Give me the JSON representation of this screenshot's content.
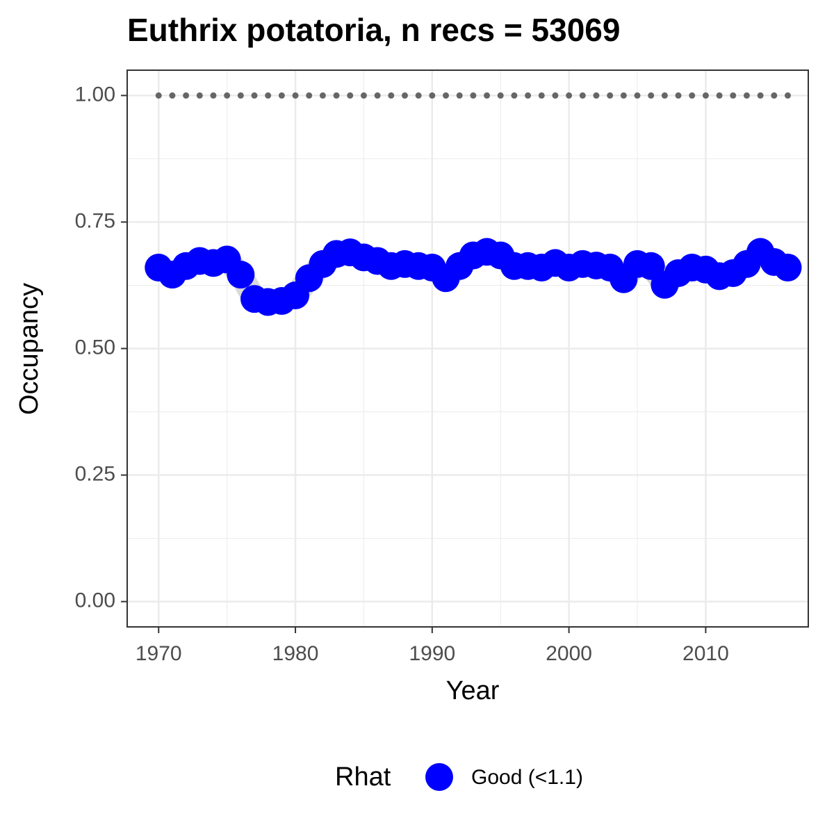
{
  "chart_data": {
    "type": "scatter",
    "title": "Euthrix potatoria, n recs = 53069",
    "x_label": "Year",
    "y_label": "Occupancy",
    "x": [
      1970,
      1971,
      1972,
      1973,
      1974,
      1975,
      1976,
      1977,
      1978,
      1979,
      1980,
      1981,
      1982,
      1983,
      1984,
      1985,
      1986,
      1987,
      1988,
      1989,
      1990,
      1991,
      1992,
      1993,
      1994,
      1995,
      1996,
      1997,
      1998,
      1999,
      2000,
      2001,
      2002,
      2003,
      2004,
      2005,
      2006,
      2007,
      2008,
      2009,
      2010,
      2011,
      2012,
      2013,
      2014,
      2015,
      2016
    ],
    "series": [
      {
        "color": "#666666",
        "values": [
          1,
          1,
          1,
          1,
          1,
          1,
          1,
          1,
          1,
          1,
          1,
          1,
          1,
          1,
          1,
          1,
          1,
          1,
          1,
          1,
          1,
          1,
          1,
          1,
          1,
          1,
          1,
          1,
          1,
          1,
          1,
          1,
          1,
          1,
          1,
          1,
          1,
          1,
          1,
          1,
          1,
          1,
          1,
          1,
          1,
          1,
          1
        ]
      },
      {
        "name": "Good (<1.1)",
        "color": "#0000ff",
        "values": [
          0.66,
          0.646,
          0.663,
          0.673,
          0.669,
          0.676,
          0.646,
          0.598,
          0.592,
          0.594,
          0.605,
          0.639,
          0.667,
          0.687,
          0.69,
          0.68,
          0.673,
          0.663,
          0.667,
          0.663,
          0.66,
          0.639,
          0.663,
          0.684,
          0.691,
          0.684,
          0.663,
          0.663,
          0.66,
          0.669,
          0.66,
          0.667,
          0.664,
          0.66,
          0.637,
          0.667,
          0.663,
          0.626,
          0.649,
          0.66,
          0.656,
          0.643,
          0.649,
          0.667,
          0.691,
          0.671,
          0.66
        ]
      }
    ],
    "legend_title": "Rhat",
    "legend": "bottom",
    "xlim": [
      1967.7,
      2017.5
    ],
    "xticks": [
      1970,
      1980,
      1990,
      2000,
      2010
    ],
    "ylim": [
      -0.05,
      1.05
    ],
    "yticks": [
      {
        "value": 0,
        "label": "0.00"
      },
      {
        "value": 0.25,
        "label": "0.25"
      },
      {
        "value": 0.5,
        "label": "0.50"
      },
      {
        "value": 0.75,
        "label": "0.75"
      },
      {
        "value": 1,
        "label": "1.00"
      }
    ],
    "grid": true
  }
}
